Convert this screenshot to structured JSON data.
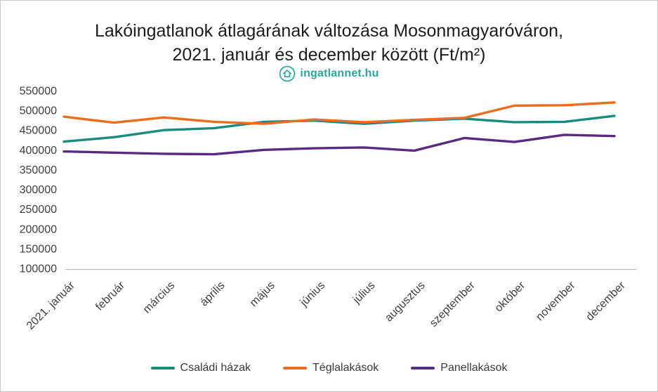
{
  "title": {
    "line1": "Lakóingatlanok átlagárának változása Mosonmagyaróváron,",
    "line2": "2021. január és december között (Ft/m²)"
  },
  "logo": {
    "text": "ingatlannet",
    "tld": ".hu",
    "color": "#2aa79b"
  },
  "chart_data": {
    "type": "line",
    "title": "Lakóingatlanok átlagárának változása Mosonmagyaróváron, 2021. január és december között (Ft/m²)",
    "categories": [
      "2021. január",
      "február",
      "március",
      "április",
      "május",
      "június",
      "július",
      "augusztus",
      "szeptember",
      "október",
      "november",
      "december"
    ],
    "series": [
      {
        "key": "csaladi-hazak",
        "name": "Családi házak",
        "color": "#1b8a7f",
        "values": [
          421000,
          432000,
          450000,
          455000,
          471000,
          474000,
          466000,
          474000,
          479000,
          470000,
          471000,
          486000
        ]
      },
      {
        "key": "teglalakasok",
        "name": "Téglalakások",
        "color": "#ed6d1f",
        "values": [
          484000,
          469000,
          482000,
          471000,
          466000,
          477000,
          470000,
          476000,
          481000,
          512000,
          513000,
          520000
        ]
      },
      {
        "key": "panellakasok",
        "name": "Panellakások",
        "color": "#5a2a82",
        "values": [
          396000,
          393000,
          390000,
          389000,
          400000,
          404000,
          406000,
          398000,
          430000,
          420000,
          438000,
          435000
        ]
      }
    ],
    "ylim": [
      100000,
      550000
    ],
    "ytick_step": 50000,
    "grid": false,
    "legend_position": "bottom",
    "axis_line_color": "#bfbfbf",
    "tick_color": "#3f3f3f"
  }
}
